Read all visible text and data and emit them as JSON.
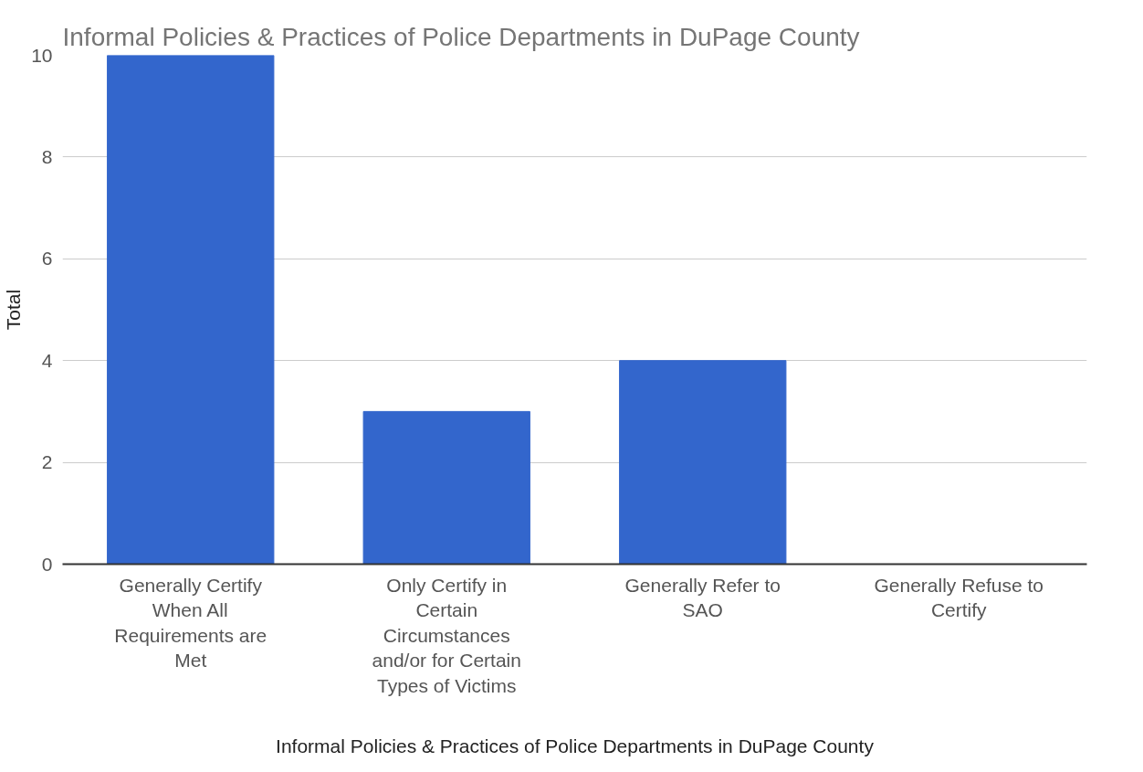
{
  "chart_data": {
    "type": "bar",
    "title": "Informal Policies & Practices of Police Departments in DuPage County",
    "xlabel": "Informal Policies & Practices of Police Departments in DuPage County",
    "ylabel": "Total",
    "categories": [
      "Generally Certify\nWhen All\nRequirements are\nMet",
      "Only Certify in\nCertain\nCircumstances\nand/or for Certain\nTypes of Victims",
      "Generally Refer to\nSAO",
      "Generally Refuse to\nCertify"
    ],
    "series": [
      {
        "color": "#3366cc",
        "values": [
          10,
          3,
          4,
          0
        ]
      }
    ],
    "ylim": [
      0,
      10
    ],
    "yticks": [
      0,
      2,
      4,
      6,
      8,
      10
    ],
    "grid": "y"
  }
}
